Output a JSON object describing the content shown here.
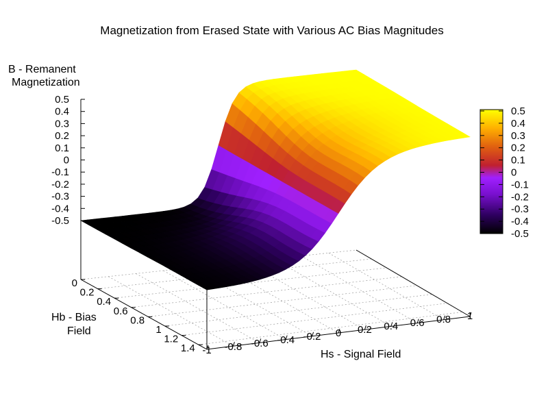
{
  "chart_data": {
    "type": "surface",
    "title": "Magnetization from Erased State with Various AC Bias Magnitudes",
    "zlabel_line1": "B - Remanent",
    "zlabel_line2": "Magnetization",
    "ylabel_line1": "Hb - Bias",
    "ylabel_line2": "Field",
    "xlabel": "Hs - Signal Field",
    "x_axis": {
      "label": "Hs - Signal Field",
      "range": [
        -1,
        1
      ],
      "ticks": [
        "-1",
        "-0.8",
        "-0.6",
        "-0.4",
        "-0.2",
        "0",
        "0.2",
        "0.4",
        "0.6",
        "0.8",
        "1"
      ]
    },
    "y_axis": {
      "label": "Hb - Bias Field",
      "range": [
        0,
        1.5
      ],
      "ticks": [
        "0",
        "0.2",
        "0.4",
        "0.6",
        "0.8",
        "1",
        "1.2",
        "1.4"
      ]
    },
    "z_axis": {
      "label": "B - Remanent Magnetization",
      "range": [
        -0.5,
        0.5
      ],
      "ticks": [
        "0.5",
        "0.4",
        "0.3",
        "0.2",
        "0.1",
        "0",
        "-0.1",
        "-0.2",
        "-0.3",
        "-0.4",
        "-0.5"
      ]
    },
    "colorbar": {
      "range": [
        -0.5,
        0.5
      ],
      "ticks": [
        "0.5",
        "0.4",
        "0.3",
        "0.2",
        "0.1",
        "0",
        "-0.1",
        "-0.2",
        "-0.3",
        "-0.4",
        "-0.5"
      ],
      "palette": [
        "#000000",
        "#5a00a0",
        "#a000ff",
        "#d03030",
        "#ff9000",
        "#ffff00"
      ]
    },
    "grid": true,
    "surface_description_values": {
      "at_Hs_minus1": -0.5,
      "at_Hs_plus1": 0.5,
      "midpoint_plateau": 0
    }
  }
}
